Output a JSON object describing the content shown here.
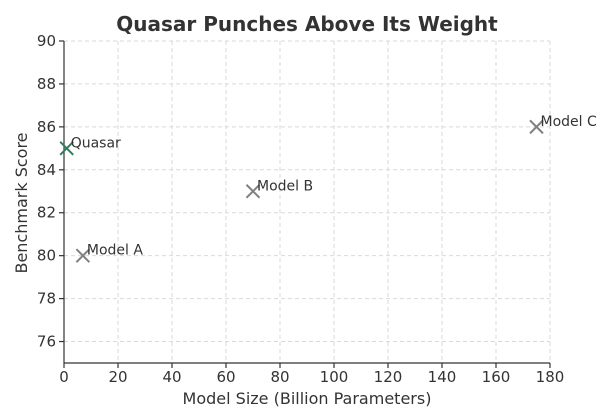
{
  "chart_data": {
    "type": "scatter",
    "title": "Quasar Punches Above Its Weight",
    "xlabel": "Model Size (Billion Parameters)",
    "ylabel": "Benchmark Score",
    "xlim": [
      0,
      180
    ],
    "ylim": [
      75,
      90
    ],
    "xticks": [
      0,
      20,
      40,
      60,
      80,
      100,
      120,
      140,
      160,
      180
    ],
    "yticks": [
      76,
      78,
      80,
      82,
      84,
      86,
      88,
      90
    ],
    "grid": true,
    "marker": "x",
    "points": [
      {
        "label": "Quasar",
        "x": 1,
        "y": 85,
        "color": "#2e7d5b"
      },
      {
        "label": "Model A",
        "x": 7,
        "y": 80,
        "color": "#808080"
      },
      {
        "label": "Model B",
        "x": 70,
        "y": 83,
        "color": "#808080"
      },
      {
        "label": "Model C",
        "x": 175,
        "y": 86,
        "color": "#808080"
      }
    ]
  }
}
